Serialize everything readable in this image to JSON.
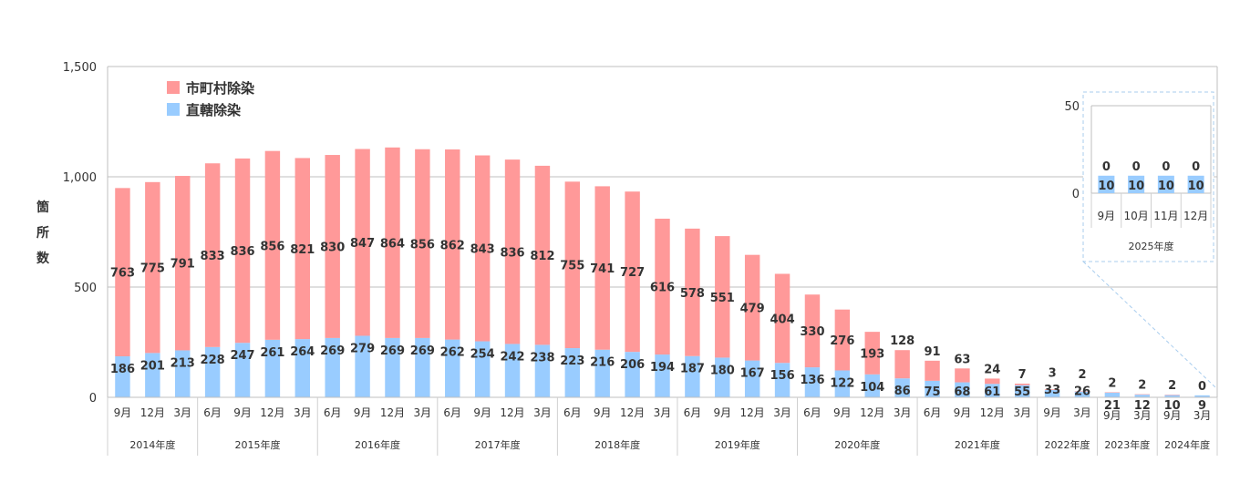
{
  "chart_data": {
    "type": "bar",
    "stacked": true,
    "ylabel": "箇所数",
    "ylim": [
      0,
      1500
    ],
    "yticks": [
      "0",
      "500",
      "1,000",
      "1,500"
    ],
    "categories": [
      "9月",
      "12月",
      "3月",
      "6月",
      "9月",
      "12月",
      "3月",
      "6月",
      "9月",
      "12月",
      "3月",
      "6月",
      "9月",
      "12月",
      "3月",
      "6月",
      "9月",
      "12月",
      "3月",
      "6月",
      "9月",
      "12月",
      "3月",
      "6月",
      "9月",
      "12月",
      "3月",
      "6月",
      "9月",
      "12月",
      "3月",
      "9月",
      "3月",
      "9月",
      "3月",
      "9月",
      "3月"
    ],
    "groups": [
      {
        "label": "2014年度",
        "count": 3
      },
      {
        "label": "2015年度",
        "count": 4
      },
      {
        "label": "2016年度",
        "count": 4
      },
      {
        "label": "2017年度",
        "count": 4
      },
      {
        "label": "2018年度",
        "count": 4
      },
      {
        "label": "2019年度",
        "count": 4
      },
      {
        "label": "2020年度",
        "count": 4
      },
      {
        "label": "2021年度",
        "count": 4
      },
      {
        "label": "2022年度",
        "count": 2
      },
      {
        "label": "2023年度",
        "count": 2
      },
      {
        "label": "2024年度",
        "count": 2
      }
    ],
    "series": [
      {
        "name": "直轄除染",
        "color": "#99ccff",
        "values": [
          186,
          201,
          213,
          228,
          247,
          261,
          264,
          269,
          279,
          269,
          269,
          262,
          254,
          242,
          238,
          223,
          216,
          206,
          194,
          187,
          180,
          167,
          156,
          136,
          122,
          104,
          86,
          75,
          68,
          61,
          55,
          33,
          26,
          21,
          12,
          10,
          9
        ]
      },
      {
        "name": "市町村除染",
        "color": "#ff9999",
        "values": [
          763,
          775,
          791,
          833,
          836,
          856,
          821,
          830,
          847,
          864,
          856,
          862,
          843,
          836,
          812,
          755,
          741,
          727,
          616,
          578,
          551,
          479,
          404,
          330,
          276,
          193,
          128,
          91,
          63,
          24,
          7,
          3,
          2,
          2,
          2,
          2,
          0
        ]
      }
    ],
    "inset": {
      "ylim": [
        0,
        50
      ],
      "yticks": [
        "0",
        "50"
      ],
      "categories": [
        "9月",
        "10月",
        "11月",
        "12月"
      ],
      "group": "2025年度",
      "series": [
        {
          "name": "直轄除染",
          "values": [
            10,
            10,
            10,
            10
          ]
        },
        {
          "name": "市町村除染",
          "values": [
            0,
            0,
            0,
            0
          ]
        }
      ]
    }
  }
}
